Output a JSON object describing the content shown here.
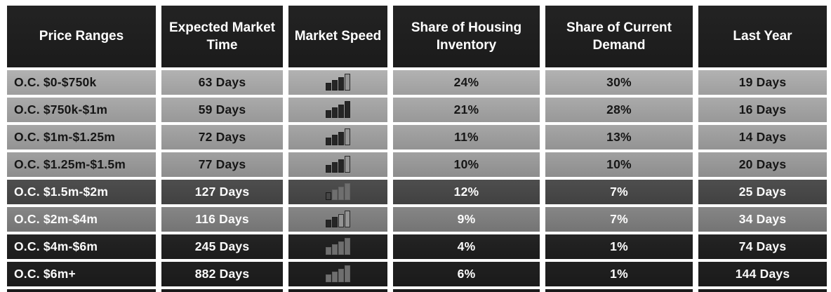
{
  "colors": {
    "page_background": "#ffffff",
    "header_background": "#1e1e1e",
    "header_text": "#ffffff",
    "grid_gap": "#ffffff"
  },
  "table": {
    "columns": [
      "Price Ranges",
      "Expected Market Time",
      "Market Speed",
      "Share of Housing Inventory",
      "Share of Current Demand",
      "Last Year"
    ],
    "rows": [
      {
        "price_range": "O.C. $0-$750k",
        "expected_market_time": "63 Days",
        "market_speed_icon": {
          "name": "bar-chart-icon",
          "bars": [
            "dark",
            "dark",
            "dark",
            "light"
          ]
        },
        "share_of_housing_inventory": "24%",
        "share_of_current_demand": "30%",
        "last_year": "19 Days",
        "bg_top": "#b2b2b2",
        "bg_bottom": "#9e9e9e",
        "text_color": "#161616"
      },
      {
        "price_range": "O.C. $750k-$1m",
        "expected_market_time": "59 Days",
        "market_speed_icon": {
          "name": "bar-chart-icon",
          "bars": [
            "dark",
            "dark",
            "dark",
            "dark"
          ]
        },
        "share_of_housing_inventory": "21%",
        "share_of_current_demand": "28%",
        "last_year": "16 Days",
        "bg_top": "#aaaaaa",
        "bg_bottom": "#989898",
        "text_color": "#161616"
      },
      {
        "price_range": "O.C. $1m-$1.25m",
        "expected_market_time": "72 Days",
        "market_speed_icon": {
          "name": "bar-chart-icon",
          "bars": [
            "dark",
            "dark",
            "dark",
            "light"
          ]
        },
        "share_of_housing_inventory": "11%",
        "share_of_current_demand": "13%",
        "last_year": "14 Days",
        "bg_top": "#a6a6a6",
        "bg_bottom": "#939393",
        "text_color": "#161616"
      },
      {
        "price_range": "O.C. $1.25m-$1.5m",
        "expected_market_time": "77 Days",
        "market_speed_icon": {
          "name": "bar-chart-icon",
          "bars": [
            "dark",
            "dark",
            "dark",
            "light"
          ]
        },
        "share_of_housing_inventory": "10%",
        "share_of_current_demand": "10%",
        "last_year": "20 Days",
        "bg_top": "#a0a0a0",
        "bg_bottom": "#8d8d8d",
        "text_color": "#161616"
      },
      {
        "price_range": "O.C. $1.5m-$2m",
        "expected_market_time": "127 Days",
        "market_speed_icon": {
          "name": "bar-chart-icon",
          "bars": [
            "outline",
            "gray",
            "gray",
            "gray"
          ]
        },
        "share_of_housing_inventory": "12%",
        "share_of_current_demand": "7%",
        "last_year": "25 Days",
        "bg_top": "#4e4e4e",
        "bg_bottom": "#414141",
        "text_color": "#fbfbfb"
      },
      {
        "price_range": "O.C. $2m-$4m",
        "expected_market_time": "116 Days",
        "market_speed_icon": {
          "name": "bar-chart-icon",
          "bars": [
            "dark",
            "dark",
            "light",
            "light"
          ]
        },
        "share_of_housing_inventory": "9%",
        "share_of_current_demand": "7%",
        "last_year": "34 Days",
        "bg_top": "#868686",
        "bg_bottom": "#747474",
        "text_color": "#fbfbfb"
      },
      {
        "price_range": "O.C. $4m-$6m",
        "expected_market_time": "245 Days",
        "market_speed_icon": {
          "name": "bar-chart-icon",
          "bars": [
            "gray",
            "gray",
            "gray",
            "gray"
          ]
        },
        "share_of_housing_inventory": "4%",
        "share_of_current_demand": "1%",
        "last_year": "74 Days",
        "bg_top": "#242424",
        "bg_bottom": "#1c1c1c",
        "text_color": "#fbfbfb"
      },
      {
        "price_range": "O.C. $6m+",
        "expected_market_time": "882 Days",
        "market_speed_icon": {
          "name": "bar-chart-icon",
          "bars": [
            "gray",
            "gray",
            "gray",
            "gray"
          ]
        },
        "share_of_housing_inventory": "6%",
        "share_of_current_demand": "1%",
        "last_year": "144 Days",
        "bg_top": "#212121",
        "bg_bottom": "#1a1a1a",
        "text_color": "#fbfbfb"
      }
    ]
  }
}
